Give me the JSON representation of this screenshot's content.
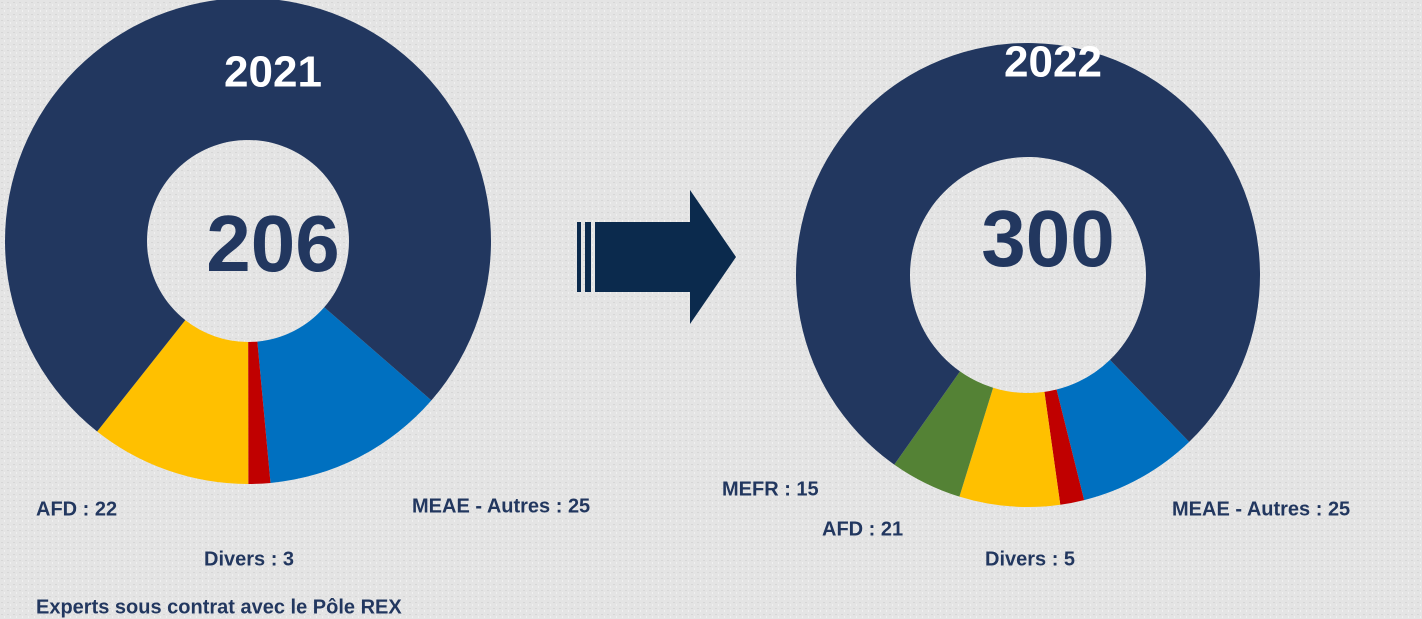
{
  "chart_data": [
    {
      "type": "donut",
      "title": "2021",
      "total": 206,
      "values": [
        25,
        3,
        22,
        156
      ],
      "value_labels": [
        "MEAE - Autres : 25",
        "Divers : 3",
        "AFD : 22",
        null
      ],
      "colors": [
        "#0070c0",
        "#c00000",
        "#ffc000",
        "#22375f"
      ]
    },
    {
      "type": "donut",
      "title": "2022",
      "total": 300,
      "values": [
        25,
        5,
        21,
        15,
        234
      ],
      "value_labels": [
        "MEAE - Autres : 25",
        "Divers : 5",
        "AFD : 21",
        "MEFR : 15",
        null
      ],
      "colors": [
        "#0070c0",
        "#c00000",
        "#ffc000",
        "#548235",
        "#22375f"
      ]
    }
  ],
  "footnote": "Experts sous contrat avec le Pôle REX"
}
